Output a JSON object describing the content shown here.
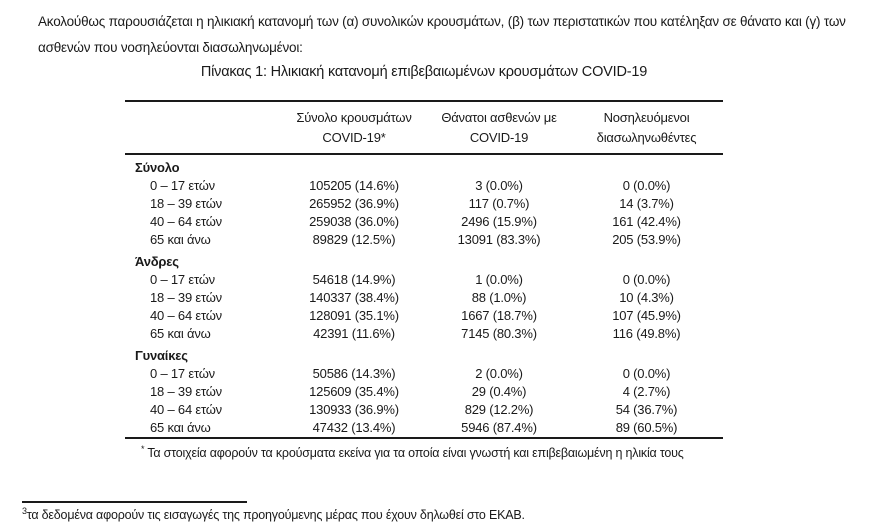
{
  "colors": {
    "background": "#ffffff",
    "text": "#1a1a1a",
    "rule": "#1a1a1a"
  },
  "page": {
    "intro": "Ακολούθως παρουσιάζεται η ηλικιακή κατανομή των (α) συνολικών κρουσμάτων, (β) των περιστατικών που κατέληξαν σε θάνατο και (γ) των\nασθενών που νοσηλεύονται διασωληνωμένοι:",
    "table_title": "Πίνακας 1: Ηλικιακή κατανομή επιβεβαιωμένων κρουσμάτων COVID-19",
    "table_footnote_marker": "*",
    "table_footnote": "Τα στοιχεία αφορούν τα κρούσματα εκείνα για τα οποία είναι γνωστή και επιβεβαιωμένη η ηλικία τους",
    "page_footnote_marker": "3",
    "page_footnote": "τα δεδομένα αφορούν τις εισαγωγές της προηγούμενης μέρας που έχουν δηλωθεί στο ΕΚΑΒ."
  },
  "table": {
    "headers": [
      {
        "line1": "Σύνολο κρουσμάτων",
        "line2": "COVID-19*"
      },
      {
        "line1": "Θάνατοι ασθενών με",
        "line2": "COVID-19"
      },
      {
        "line1": "Νοσηλευόμενοι",
        "line2": "διασωληνωθέντες"
      }
    ],
    "groups": [
      {
        "label": "Σύνολο",
        "rows": [
          {
            "age": "0 – 17 ετών",
            "cases": "105205 (14.6%)",
            "deaths": "3 (0.0%)",
            "intubated": "0 (0.0%)"
          },
          {
            "age": "18 – 39 ετών",
            "cases": "265952 (36.9%)",
            "deaths": "117 (0.7%)",
            "intubated": "14 (3.7%)"
          },
          {
            "age": "40 – 64 ετών",
            "cases": "259038 (36.0%)",
            "deaths": "2496 (15.9%)",
            "intubated": "161 (42.4%)"
          },
          {
            "age": "65 και άνω",
            "cases": "89829 (12.5%)",
            "deaths": "13091 (83.3%)",
            "intubated": "205 (53.9%)"
          }
        ]
      },
      {
        "label": "Άνδρες",
        "rows": [
          {
            "age": "0 – 17 ετών",
            "cases": "54618 (14.9%)",
            "deaths": "1 (0.0%)",
            "intubated": "0 (0.0%)"
          },
          {
            "age": "18 – 39 ετών",
            "cases": "140337 (38.4%)",
            "deaths": "88 (1.0%)",
            "intubated": "10 (4.3%)"
          },
          {
            "age": "40 – 64 ετών",
            "cases": "128091 (35.1%)",
            "deaths": "1667 (18.7%)",
            "intubated": "107 (45.9%)"
          },
          {
            "age": "65 και άνω",
            "cases": "42391 (11.6%)",
            "deaths": "7145 (80.3%)",
            "intubated": "116 (49.8%)"
          }
        ]
      },
      {
        "label": "Γυναίκες",
        "rows": [
          {
            "age": "0 – 17 ετών",
            "cases": "50586 (14.3%)",
            "deaths": "2 (0.0%)",
            "intubated": "0 (0.0%)"
          },
          {
            "age": "18 – 39 ετών",
            "cases": "125609 (35.4%)",
            "deaths": "29 (0.4%)",
            "intubated": "4 (2.7%)"
          },
          {
            "age": "40 – 64 ετών",
            "cases": "130933 (36.9%)",
            "deaths": "829 (12.2%)",
            "intubated": "54 (36.7%)"
          },
          {
            "age": "65 και άνω",
            "cases": "47432 (13.4%)",
            "deaths": "5946 (87.4%)",
            "intubated": "89 (60.5%)"
          }
        ]
      }
    ]
  }
}
